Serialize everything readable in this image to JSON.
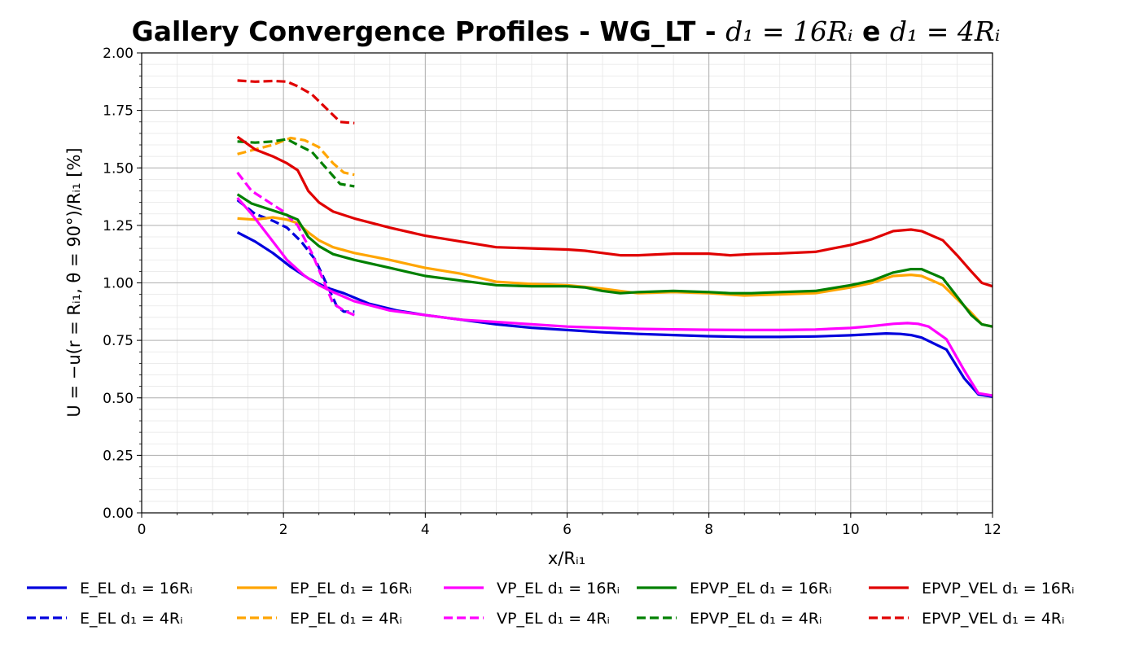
{
  "chart_data": {
    "type": "line",
    "title": {
      "prefix": "Gallery Convergence Profiles - WG_LT - ",
      "math1": "d₁ = 16Rᵢ",
      "joiner": " e ",
      "math2": "d₁ = 4Rᵢ"
    },
    "xlabel": "x/Rᵢ₁",
    "ylabel": "U = −u(r = Rᵢ₁, θ = 90°)/Rᵢ₁ [%]",
    "xlim": [
      0,
      12
    ],
    "ylim": [
      0,
      2.0
    ],
    "xticks": [
      0,
      2,
      4,
      6,
      8,
      10,
      12
    ],
    "xtick_labels": [
      "0",
      "2",
      "4",
      "6",
      "8",
      "10",
      "12"
    ],
    "yticks": [
      0,
      0.25,
      0.5,
      0.75,
      1.0,
      1.25,
      1.5,
      1.75,
      2.0
    ],
    "ytick_labels": [
      "0.00",
      "0.25",
      "0.50",
      "0.75",
      "1.00",
      "1.25",
      "1.50",
      "1.75",
      "2.00"
    ],
    "grid": true,
    "minor_grid": true,
    "legend_position": "bottom",
    "series": [
      {
        "name": "E_EL d₁ = 16Rᵢ",
        "color": "#0000dd",
        "dash": "solid",
        "x": [
          1.35,
          1.6,
          1.85,
          2.1,
          2.35,
          2.6,
          2.85,
          3.2,
          3.6,
          4.0,
          4.5,
          5.0,
          5.5,
          6.0,
          6.5,
          7.0,
          7.5,
          8.0,
          8.5,
          9.0,
          9.5,
          10.0,
          10.3,
          10.5,
          10.7,
          10.85,
          11.0,
          11.35,
          11.6,
          11.8,
          12.0
        ],
        "y": [
          1.22,
          1.18,
          1.13,
          1.07,
          1.02,
          0.98,
          0.955,
          0.91,
          0.88,
          0.86,
          0.84,
          0.82,
          0.805,
          0.795,
          0.785,
          0.778,
          0.773,
          0.768,
          0.765,
          0.765,
          0.767,
          0.772,
          0.777,
          0.78,
          0.778,
          0.773,
          0.762,
          0.71,
          0.585,
          0.515,
          0.505
        ]
      },
      {
        "name": "E_EL d₁ = 4Rᵢ",
        "color": "#0000dd",
        "dash": "dashed",
        "x": [
          1.35,
          1.6,
          1.85,
          2.05,
          2.25,
          2.45,
          2.6,
          2.75,
          2.85,
          3.0
        ],
        "y": [
          1.36,
          1.3,
          1.27,
          1.24,
          1.18,
          1.1,
          1.0,
          0.9,
          0.875,
          0.875
        ]
      },
      {
        "name": "EP_EL d₁ = 16Rᵢ",
        "color": "#ffa500",
        "dash": "solid",
        "x": [
          1.35,
          1.6,
          1.85,
          2.05,
          2.2,
          2.35,
          2.5,
          2.7,
          3.0,
          3.5,
          4.0,
          4.5,
          5.0,
          5.5,
          6.0,
          6.5,
          7.0,
          7.5,
          8.0,
          8.5,
          9.0,
          9.5,
          10.0,
          10.3,
          10.6,
          10.85,
          11.0,
          11.3,
          11.5,
          11.7,
          11.85,
          12.0
        ],
        "y": [
          1.28,
          1.275,
          1.285,
          1.275,
          1.26,
          1.22,
          1.185,
          1.155,
          1.13,
          1.1,
          1.065,
          1.04,
          1.005,
          0.995,
          0.99,
          0.975,
          0.955,
          0.96,
          0.955,
          0.945,
          0.95,
          0.955,
          0.98,
          1.0,
          1.03,
          1.035,
          1.03,
          0.99,
          0.93,
          0.87,
          0.82,
          0.81
        ]
      },
      {
        "name": "EP_EL d₁ = 4Rᵢ",
        "color": "#ffa500",
        "dash": "dashed",
        "x": [
          1.35,
          1.6,
          1.85,
          2.1,
          2.3,
          2.5,
          2.7,
          2.85,
          3.0
        ],
        "y": [
          1.56,
          1.58,
          1.6,
          1.63,
          1.62,
          1.59,
          1.52,
          1.48,
          1.47
        ]
      },
      {
        "name": "VP_EL d₁ = 16Rᵢ",
        "color": "#ff00ff",
        "dash": "solid",
        "x": [
          1.35,
          1.55,
          1.8,
          2.05,
          2.3,
          2.5,
          2.7,
          3.0,
          3.5,
          4.0,
          4.5,
          5.0,
          5.5,
          6.0,
          6.5,
          7.0,
          7.5,
          8.0,
          8.5,
          9.0,
          9.5,
          10.0,
          10.3,
          10.6,
          10.8,
          10.95,
          11.1,
          11.35,
          11.6,
          11.8,
          12.0
        ],
        "y": [
          1.37,
          1.3,
          1.2,
          1.1,
          1.03,
          0.99,
          0.96,
          0.92,
          0.88,
          0.86,
          0.84,
          0.83,
          0.82,
          0.81,
          0.805,
          0.8,
          0.798,
          0.796,
          0.795,
          0.795,
          0.797,
          0.804,
          0.812,
          0.822,
          0.825,
          0.822,
          0.81,
          0.755,
          0.62,
          0.52,
          0.51
        ]
      },
      {
        "name": "VP_EL d₁ = 4Rᵢ",
        "color": "#ff00ff",
        "dash": "dashed",
        "x": [
          1.35,
          1.55,
          1.8,
          2.0,
          2.2,
          2.4,
          2.55,
          2.7,
          2.85,
          3.0
        ],
        "y": [
          1.48,
          1.4,
          1.35,
          1.31,
          1.25,
          1.13,
          1.02,
          0.91,
          0.88,
          0.86
        ]
      },
      {
        "name": "EPVP_EL d₁ = 16Rᵢ",
        "color": "#008000",
        "dash": "solid",
        "x": [
          1.35,
          1.55,
          1.85,
          2.05,
          2.2,
          2.35,
          2.5,
          2.7,
          3.0,
          3.5,
          4.0,
          4.5,
          5.0,
          5.5,
          6.0,
          6.25,
          6.5,
          6.75,
          7.0,
          7.5,
          8.0,
          8.3,
          8.6,
          9.0,
          9.5,
          10.0,
          10.3,
          10.6,
          10.85,
          11.0,
          11.3,
          11.5,
          11.7,
          11.85,
          12.0
        ],
        "y": [
          1.385,
          1.345,
          1.315,
          1.295,
          1.275,
          1.2,
          1.16,
          1.125,
          1.1,
          1.065,
          1.03,
          1.01,
          0.99,
          0.985,
          0.985,
          0.98,
          0.965,
          0.955,
          0.96,
          0.965,
          0.96,
          0.955,
          0.955,
          0.96,
          0.965,
          0.99,
          1.01,
          1.045,
          1.06,
          1.06,
          1.02,
          0.94,
          0.86,
          0.82,
          0.81
        ]
      },
      {
        "name": "EPVP_EL d₁ = 4Rᵢ",
        "color": "#008000",
        "dash": "dashed",
        "x": [
          1.35,
          1.6,
          1.85,
          2.05,
          2.2,
          2.4,
          2.6,
          2.8,
          3.0
        ],
        "y": [
          1.615,
          1.61,
          1.615,
          1.625,
          1.6,
          1.57,
          1.5,
          1.43,
          1.42
        ]
      },
      {
        "name": "EPVP_VEL d₁ = 16Rᵢ",
        "color": "#e00000",
        "dash": "solid",
        "x": [
          1.35,
          1.6,
          1.85,
          2.05,
          2.2,
          2.35,
          2.5,
          2.7,
          3.0,
          3.5,
          4.0,
          4.5,
          5.0,
          5.5,
          6.0,
          6.25,
          6.5,
          6.75,
          7.0,
          7.5,
          8.0,
          8.3,
          8.6,
          9.0,
          9.5,
          10.0,
          10.3,
          10.6,
          10.85,
          11.0,
          11.3,
          11.5,
          11.7,
          11.85,
          12.0
        ],
        "y": [
          1.635,
          1.58,
          1.55,
          1.52,
          1.49,
          1.4,
          1.35,
          1.31,
          1.28,
          1.24,
          1.205,
          1.18,
          1.155,
          1.15,
          1.145,
          1.14,
          1.13,
          1.12,
          1.12,
          1.127,
          1.127,
          1.12,
          1.125,
          1.128,
          1.135,
          1.165,
          1.19,
          1.225,
          1.232,
          1.225,
          1.185,
          1.12,
          1.05,
          1.0,
          0.985
        ]
      },
      {
        "name": "EPVP_VEL d₁ = 4Rᵢ",
        "color": "#e00000",
        "dash": "dashed",
        "x": [
          1.35,
          1.6,
          1.85,
          2.05,
          2.2,
          2.4,
          2.6,
          2.8,
          3.0
        ],
        "y": [
          1.88,
          1.875,
          1.878,
          1.875,
          1.855,
          1.82,
          1.76,
          1.7,
          1.695
        ]
      }
    ]
  }
}
